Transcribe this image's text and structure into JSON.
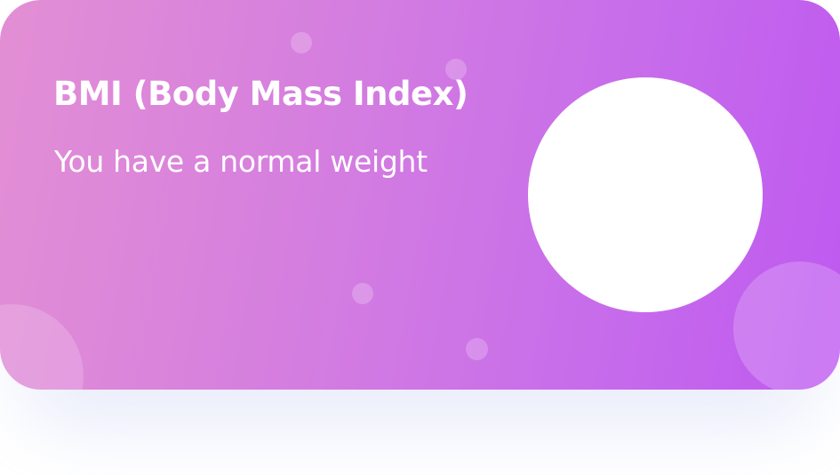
{
  "bmi_card": {
    "title": "BMI (Body Mass Index)",
    "status_text": "You have a normal weight",
    "score_value": ""
  },
  "colors": {
    "gradient_start": "#e38fd4",
    "gradient_end": "#bf59f0",
    "text": "#ffffff",
    "circle": "#ffffff"
  }
}
